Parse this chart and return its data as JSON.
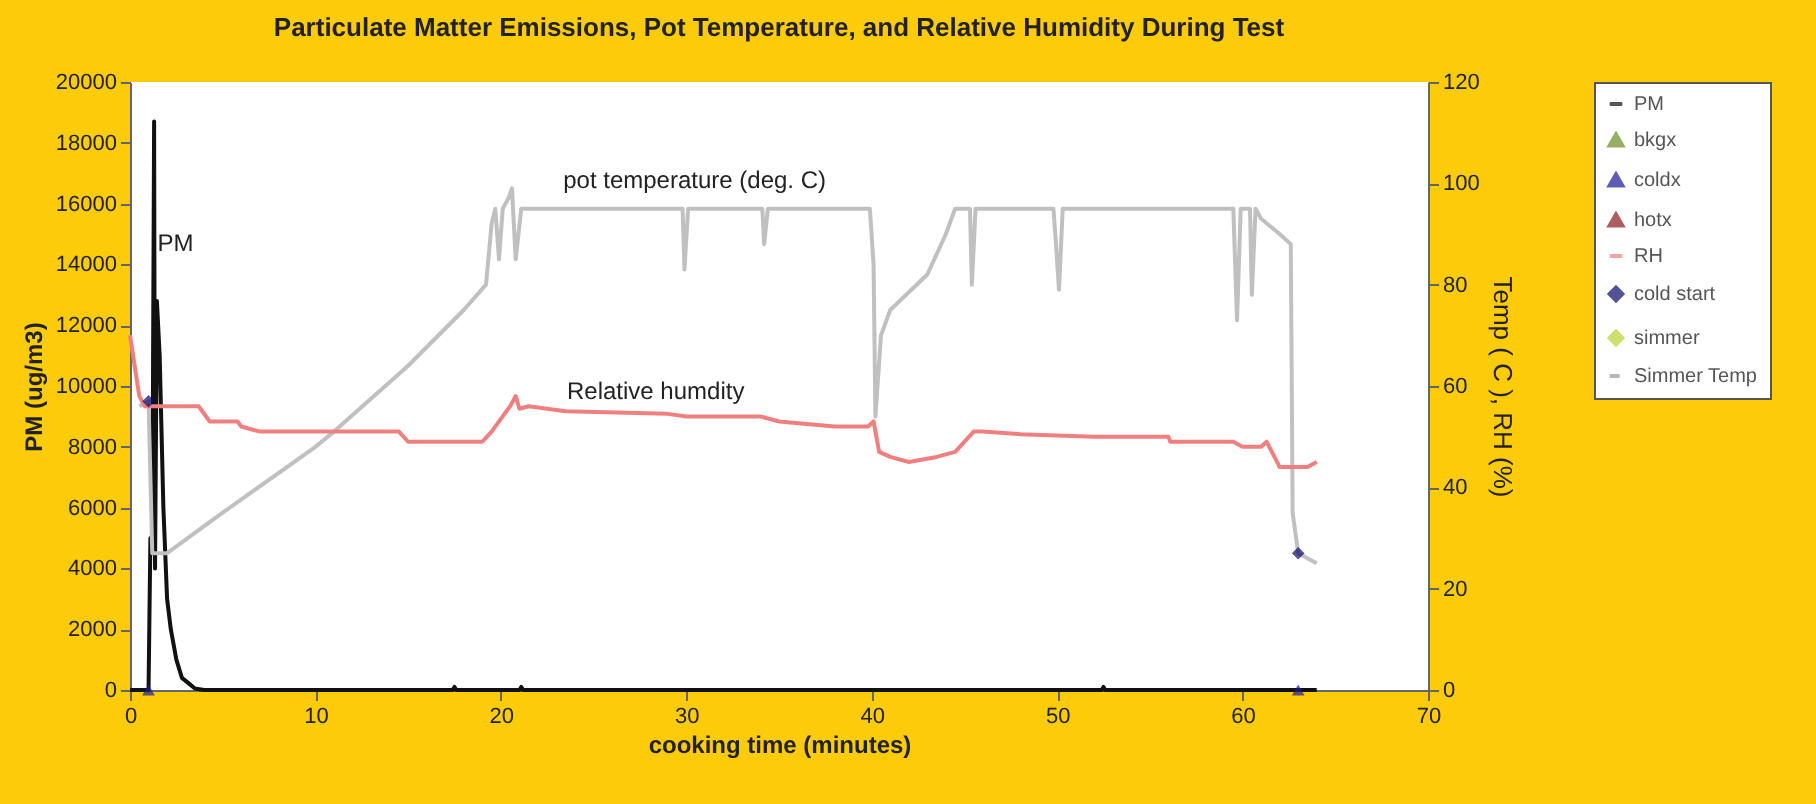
{
  "chart_data": {
    "type": "line",
    "title": "Particulate Matter Emissions, Pot Temperature, and Relative Humidity During Test",
    "xlabel": "cooking time (minutes)",
    "ylabel": "PM (ug/m3)",
    "y2label": "Temp ( C ), RH (%)",
    "xlim": [
      0,
      70
    ],
    "xticks": [
      0,
      10,
      20,
      30,
      40,
      50,
      60,
      70
    ],
    "ylim": [
      0,
      20000
    ],
    "yticks": [
      0,
      2000,
      4000,
      6000,
      8000,
      10000,
      12000,
      14000,
      16000,
      18000,
      20000
    ],
    "y2lim": [
      0,
      120
    ],
    "y2ticks": [
      0,
      20,
      40,
      60,
      80,
      100,
      120
    ],
    "grid": false,
    "legend": "right",
    "annotations": [
      "PM",
      "pot temperature (deg. C)",
      "Relative humdity"
    ],
    "series": [
      {
        "name": "PM",
        "type": "line",
        "color": "#111111",
        "marker": "none",
        "x": [
          0,
          0.9,
          1.0,
          1.1,
          1.2,
          1.3,
          1.35,
          1.45,
          1.6,
          1.8,
          2.0,
          2.2,
          2.5,
          2.8,
          3.2,
          3.5,
          4,
          17.4,
          17.5,
          17.6,
          21,
          21.1,
          21.2,
          52.4,
          52.5,
          52.6,
          64
        ],
        "values": [
          0,
          0,
          0,
          5000,
          4500,
          18700,
          4000,
          12800,
          11000,
          6000,
          3000,
          2000,
          1000,
          400,
          200,
          50,
          0,
          0,
          100,
          0,
          0,
          100,
          0,
          0,
          100,
          0,
          0
        ]
      },
      {
        "type": "line",
        "axis": "y2",
        "color": "#c0c0c0",
        "marker": "none",
        "x": [
          0.5,
          1.0,
          1.2,
          2.0,
          5,
          10,
          11,
          15,
          18,
          19.2,
          19.5,
          19.7,
          19.9,
          20.1,
          20.4,
          20.6,
          20.8,
          21.1,
          21.5,
          29.8,
          29.9,
          30.1,
          34.1,
          34.2,
          34.4,
          39.9,
          40.1,
          40.2,
          40.5,
          41,
          43,
          44,
          44.5,
          45.3,
          45.4,
          45.6,
          49.8,
          49.9,
          50.1,
          50.3,
          59.5,
          59.7,
          59.9,
          60.4,
          60.5,
          60.7,
          61,
          62,
          62.6,
          62.7,
          63,
          64
        ],
        "values": [
          56,
          57,
          27,
          27,
          35,
          48,
          51,
          64,
          75,
          80,
          92,
          95,
          85,
          95,
          97,
          99,
          85,
          95,
          95,
          95,
          83,
          95,
          95,
          88,
          95,
          95,
          84,
          54,
          70,
          75,
          82,
          90,
          95,
          95,
          80,
          95,
          95,
          90,
          79,
          95,
          95,
          73,
          95,
          95,
          78,
          95,
          93,
          90,
          88,
          35,
          27,
          25
        ]
      },
      {
        "name": "bkgx",
        "type": "scatter",
        "color": "#6b8e23",
        "marker": "triangle"
      },
      {
        "name": "coldx",
        "type": "scatter",
        "color": "#1a1a9a",
        "marker": "triangle",
        "x": [
          1,
          63
        ],
        "values": [
          0,
          0
        ]
      },
      {
        "name": "hotx",
        "type": "scatter",
        "color": "#8b1a1a",
        "marker": "triangle"
      },
      {
        "name": "RH",
        "type": "line",
        "axis": "y2",
        "color": "#f08080",
        "marker": "none",
        "x": [
          0,
          0.5,
          0.8,
          1.3,
          3.7,
          4.3,
          5.8,
          6,
          7,
          10,
          14.5,
          15,
          19,
          19.5,
          20.5,
          20.8,
          21,
          21.5,
          23.5,
          29,
          30,
          34,
          35,
          38,
          39.8,
          40.1,
          40.4,
          41,
          42,
          43.5,
          44.5,
          45.5,
          46,
          48,
          52,
          56,
          56.1,
          59.5,
          60,
          61,
          61.3,
          62,
          63.5,
          64
        ],
        "values": [
          70,
          58,
          56,
          56,
          56,
          53,
          53,
          52,
          51,
          51,
          51,
          49,
          49,
          51,
          56,
          58,
          55.5,
          56,
          55,
          54.5,
          54,
          54,
          53,
          52,
          52,
          53,
          47,
          46,
          45,
          46,
          47,
          51,
          51,
          50.5,
          50,
          50,
          49,
          49,
          48,
          48,
          49,
          44,
          44,
          45
        ]
      },
      {
        "name": "cold start",
        "type": "scatter",
        "axis": "y2",
        "color": "#0a0a6a",
        "marker": "diamond",
        "x": [
          1,
          63
        ],
        "values": [
          57,
          27
        ]
      },
      {
        "name": "simmer",
        "type": "scatter",
        "color": "#b8d432",
        "marker": "diamond"
      },
      {
        "name": "Simmer Temp",
        "type": "line",
        "axis": "y2",
        "color": "#999999",
        "marker": "none",
        "line_style": "dashed"
      }
    ]
  }
}
